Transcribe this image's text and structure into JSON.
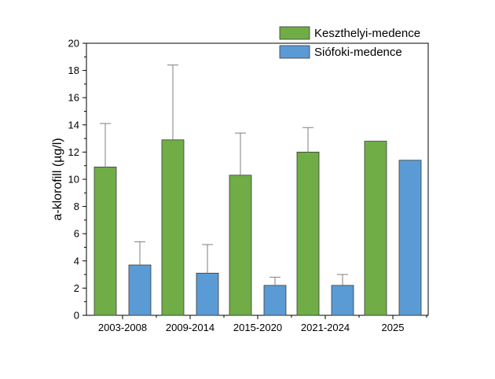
{
  "chart_data": {
    "type": "bar",
    "categories": [
      "2003-2008",
      "2009-2014",
      "2015-2020",
      "2021-2024",
      "2025"
    ],
    "series": [
      {
        "name": "Keszthelyi-medence",
        "color": "#70AD47",
        "values": [
          10.9,
          12.9,
          10.3,
          12.0,
          12.8
        ],
        "error_upper": [
          14.1,
          18.4,
          13.4,
          13.8,
          null
        ]
      },
      {
        "name": "Siófoki-medence",
        "color": "#5B9BD5",
        "values": [
          3.7,
          3.1,
          2.2,
          2.2,
          11.4
        ],
        "error_upper": [
          5.4,
          5.2,
          2.8,
          3.0,
          null
        ]
      }
    ],
    "ylabel": "a-klorofill (µg/l)",
    "xlabel": "",
    "ylim": [
      0,
      20
    ],
    "yticks": [
      0,
      2,
      4,
      6,
      8,
      10,
      12,
      14,
      16,
      18,
      20
    ],
    "grid": false,
    "legend_position": "top-right"
  }
}
